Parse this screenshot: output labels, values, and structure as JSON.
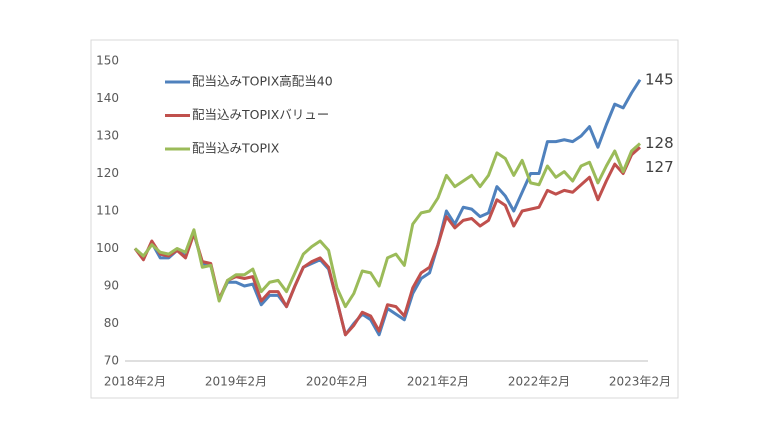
{
  "chart_data": {
    "type": "line",
    "categories": [
      "2018年2月",
      null,
      null,
      null,
      null,
      null,
      null,
      null,
      null,
      null,
      null,
      null,
      "2019年2月",
      null,
      null,
      null,
      null,
      null,
      null,
      null,
      null,
      null,
      null,
      null,
      "2020年2月",
      null,
      null,
      null,
      null,
      null,
      null,
      null,
      null,
      null,
      null,
      null,
      "2021年2月",
      null,
      null,
      null,
      null,
      null,
      null,
      null,
      null,
      null,
      null,
      null,
      "2022年2月",
      null,
      null,
      null,
      null,
      null,
      null,
      null,
      null,
      null,
      null,
      null,
      "2023年2月"
    ],
    "series": [
      {
        "name": "配当込みTOPIX高配当40",
        "color": "#4f81bd",
        "values": [
          100,
          97.5,
          101.5,
          97.5,
          97.5,
          99.5,
          98,
          104,
          96,
          95.5,
          86.5,
          91,
          91,
          90,
          90.5,
          85,
          87.5,
          87.5,
          84.5,
          90,
          95,
          96,
          97,
          94.5,
          86,
          77,
          80,
          82.5,
          81,
          77,
          84,
          82.5,
          81,
          88,
          92,
          93.5,
          101,
          110,
          106.5,
          111,
          110.5,
          108.5,
          109.5,
          116.5,
          114,
          110,
          115,
          120,
          120,
          128.5,
          128.5,
          129,
          128.5,
          130,
          132.5,
          127,
          133,
          138.5,
          137.5,
          141.5,
          145
        ]
      },
      {
        "name": "配当込みTOPIXバリュー",
        "color": "#c0504d",
        "values": [
          100,
          97,
          102,
          98.5,
          98,
          99.5,
          97.5,
          104,
          96.5,
          96,
          86.5,
          91.5,
          92.5,
          92,
          92.5,
          86,
          88.5,
          88.5,
          84.5,
          90,
          95,
          96.5,
          97.5,
          95,
          86,
          77,
          79.5,
          83,
          82,
          78,
          85,
          84.5,
          82,
          89.5,
          93.5,
          95,
          101,
          108.5,
          105.5,
          107.5,
          108,
          106,
          107.5,
          113,
          111.5,
          106,
          110,
          110.5,
          111,
          115.5,
          114.5,
          115.5,
          115,
          117,
          119,
          113,
          118,
          122.5,
          120,
          125,
          127
        ]
      },
      {
        "name": "配当込みTOPIX",
        "color": "#9bbb59",
        "values": [
          100,
          98,
          101,
          99,
          98.5,
          100,
          99,
          105,
          95,
          95.5,
          86,
          91.5,
          93,
          93,
          94.5,
          88.5,
          91,
          91.5,
          88.5,
          93.5,
          98.5,
          100.5,
          102,
          99.5,
          89.5,
          84.5,
          88,
          94,
          93.5,
          90,
          97.5,
          98.5,
          95.5,
          106.5,
          109.5,
          110,
          113.5,
          119.5,
          116.5,
          118,
          119.5,
          116.5,
          119.5,
          125.5,
          124,
          119.5,
          123.5,
          117.5,
          117,
          122,
          119,
          120.5,
          118,
          122,
          123,
          117.5,
          122,
          126,
          120.5,
          126,
          128
        ]
      }
    ],
    "ylim": [
      70,
      150
    ],
    "yticks": [
      70,
      80,
      90,
      100,
      110,
      120,
      130,
      140,
      150
    ],
    "grid": false,
    "legend": "upper left"
  }
}
